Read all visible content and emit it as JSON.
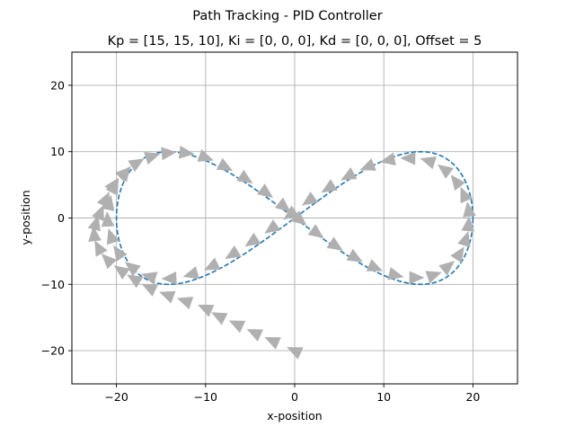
{
  "chart_data": {
    "type": "line",
    "suptitle": "Path Tracking - PID Controller",
    "title": "Kp = [15, 15, 10], Ki = [0, 0, 0], Kd = [0, 0, 0], Offset = 5",
    "xlabel": "x-position",
    "ylabel": "y-position",
    "xlim": [
      -25,
      25
    ],
    "ylim": [
      -25,
      25
    ],
    "xticks": [
      -20,
      -10,
      0,
      10,
      20
    ],
    "yticks": [
      -20,
      -10,
      0,
      10,
      20
    ],
    "xtick_labels": [
      "−20",
      "−10",
      "0",
      "10",
      "20"
    ],
    "ytick_labels": [
      "−20",
      "−10",
      "0",
      "10",
      "20"
    ],
    "grid": true,
    "series": [
      {
        "style": "dashed-line",
        "color": "#1f77b4",
        "curve": "figure-eight (lemniscate)",
        "x_amplitude": 20,
        "y_amplitude": 10
      },
      {
        "style": "triangle-markers",
        "color": "#b0b0b0",
        "start": [
          0,
          -20
        ],
        "points": [
          [
            0,
            -20
          ],
          [
            -2.5,
            -18.5
          ],
          [
            -4.5,
            -17.3
          ],
          [
            -6.5,
            -16
          ],
          [
            -8.5,
            -14.8
          ],
          [
            -10,
            -13.6
          ],
          [
            -12.3,
            -12.5
          ],
          [
            -14.3,
            -11.6
          ],
          [
            -16.3,
            -10.5
          ],
          [
            -18,
            -9.2
          ],
          [
            -19.5,
            -7.9
          ],
          [
            -21,
            -6.3
          ],
          [
            -22,
            -4.5
          ],
          [
            -22.5,
            -2.5
          ],
          [
            -22.3,
            -0.8
          ],
          [
            -21.8,
            0.8
          ],
          [
            -21.2,
            2.8
          ],
          [
            -20.3,
            5
          ],
          [
            -19.1,
            6.8
          ],
          [
            -17.7,
            8.3
          ],
          [
            -16,
            9.3
          ],
          [
            -14.2,
            9.8
          ],
          [
            -12.2,
            9.8
          ],
          [
            -10,
            9.1
          ],
          [
            -7.8,
            7.7
          ],
          [
            -5.5,
            5.9
          ],
          [
            -3.2,
            3.8
          ],
          [
            -1.2,
            1.7
          ],
          [
            0.6,
            -0.3
          ],
          [
            2.5,
            -2.3
          ],
          [
            4.6,
            -4.2
          ],
          [
            6.8,
            -6
          ],
          [
            9,
            -7.5
          ],
          [
            11.3,
            -8.6
          ],
          [
            13.6,
            -9
          ],
          [
            15.6,
            -8.6
          ],
          [
            17.2,
            -7.3
          ],
          [
            18.5,
            -5.4
          ],
          [
            19.2,
            -3.2
          ],
          [
            19.5,
            -1
          ],
          [
            19.5,
            1.2
          ],
          [
            19,
            3.5
          ],
          [
            18.1,
            5.5
          ],
          [
            16.8,
            7.3
          ],
          [
            15,
            8.6
          ],
          [
            12.8,
            9
          ],
          [
            10.5,
            8.7
          ],
          [
            8.2,
            7.7
          ],
          [
            6,
            6.3
          ],
          [
            3.8,
            4.5
          ],
          [
            1.6,
            2.6
          ],
          [
            -0.5,
            0.5
          ],
          [
            -2.6,
            -1.6
          ],
          [
            -4.8,
            -3.6
          ],
          [
            -7,
            -5.5
          ],
          [
            -9.3,
            -7.3
          ],
          [
            -11.6,
            -8.5
          ],
          [
            -14,
            -9.1
          ],
          [
            -16.3,
            -8.8
          ],
          [
            -18.3,
            -7.4
          ],
          [
            -19.8,
            -5.2
          ],
          [
            -20.6,
            -2.8
          ],
          [
            -21,
            -0.3
          ],
          [
            -20.8,
            2.2
          ],
          [
            -20.2,
            4.7
          ],
          [
            -19,
            6.8
          ]
        ]
      }
    ]
  }
}
